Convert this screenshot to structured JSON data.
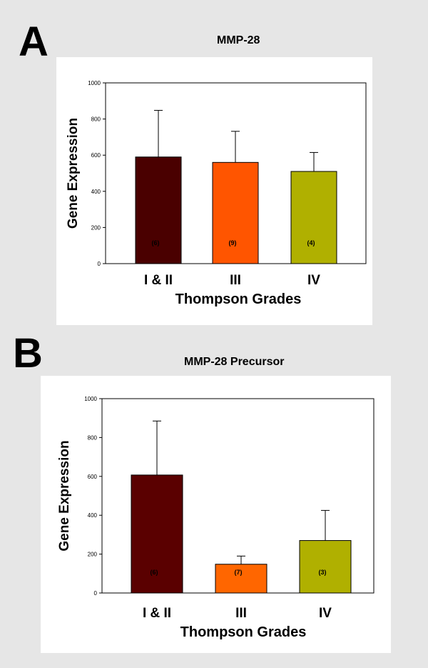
{
  "panels": [
    {
      "letter": "A"
    },
    {
      "letter": "B"
    }
  ],
  "chart_data": [
    {
      "type": "bar",
      "title": "MMP-28",
      "xlabel": "Thompson Grades",
      "ylabel": "Gene Expression",
      "categories": [
        "I & II",
        "III",
        "IV"
      ],
      "values": [
        590,
        560,
        510
      ],
      "error_upper": [
        848,
        732,
        615
      ],
      "sample_labels": [
        "(6)",
        "(9)",
        "(4)"
      ],
      "colors": [
        "#4a0000",
        "#ff5500",
        "#b0b000"
      ],
      "ylim": [
        0,
        1000
      ],
      "yticks": [
        0,
        200,
        400,
        600,
        800,
        1000
      ],
      "grid": false
    },
    {
      "type": "bar",
      "title": "MMP-28 Precursor",
      "xlabel": "Thompson Grades",
      "ylabel": "Gene Expression",
      "categories": [
        "I & II",
        "III",
        "IV"
      ],
      "values": [
        607,
        148,
        270
      ],
      "error_upper": [
        885,
        190,
        425
      ],
      "sample_labels": [
        "(6)",
        "(7)",
        "(3)"
      ],
      "colors": [
        "#5a0000",
        "#ff6600",
        "#b0b000"
      ],
      "ylim": [
        0,
        1000
      ],
      "yticks": [
        0,
        200,
        400,
        600,
        800,
        1000
      ],
      "grid": false
    }
  ]
}
